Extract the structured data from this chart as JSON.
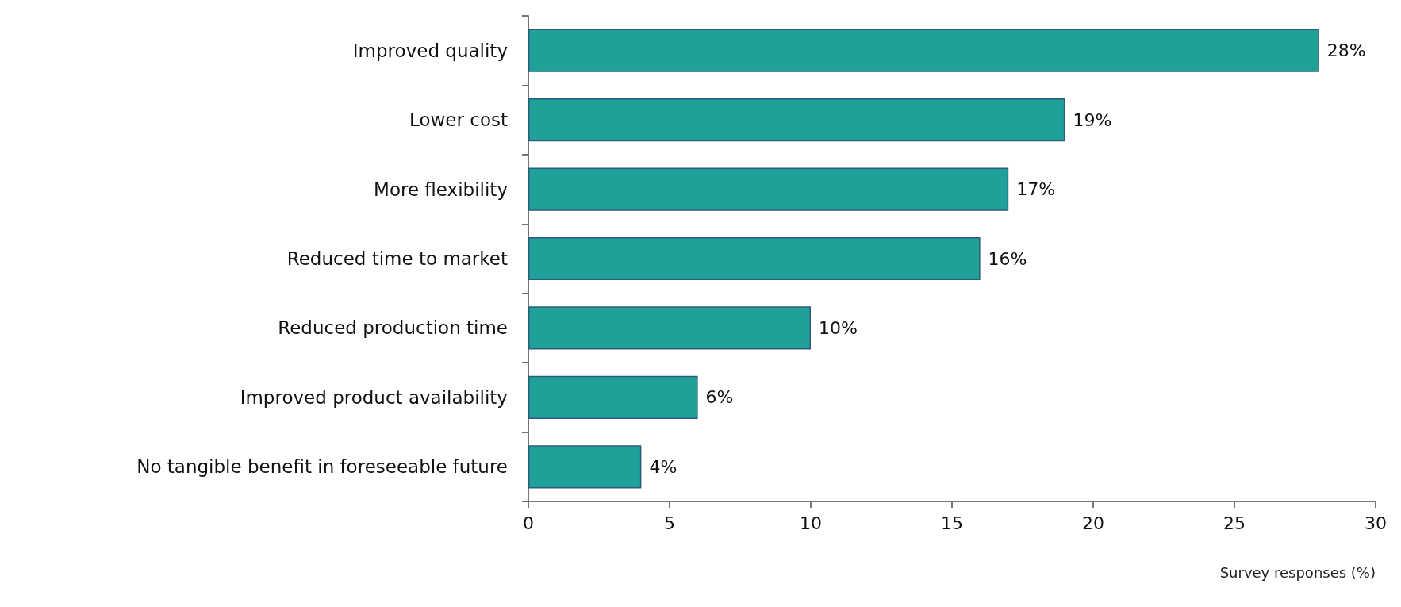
{
  "chart_data": {
    "type": "bar",
    "orientation": "horizontal",
    "xlabel": "Survey responses (%)",
    "categories": [
      "Improved quality",
      "Lower cost",
      "More flexibility",
      "Reduced time to market",
      "Reduced production time",
      "Improved product availability",
      "No tangible benefit in foreseeable future"
    ],
    "values": [
      28,
      19,
      17,
      16,
      10,
      6,
      4
    ],
    "value_labels": [
      "28%",
      "19%",
      "17%",
      "16%",
      "10%",
      "6%",
      "4%"
    ],
    "color": "#1fa19a",
    "xlim": [
      0,
      30
    ],
    "xticks": [
      0,
      5,
      10,
      15,
      20,
      25,
      30
    ],
    "grid": false
  }
}
